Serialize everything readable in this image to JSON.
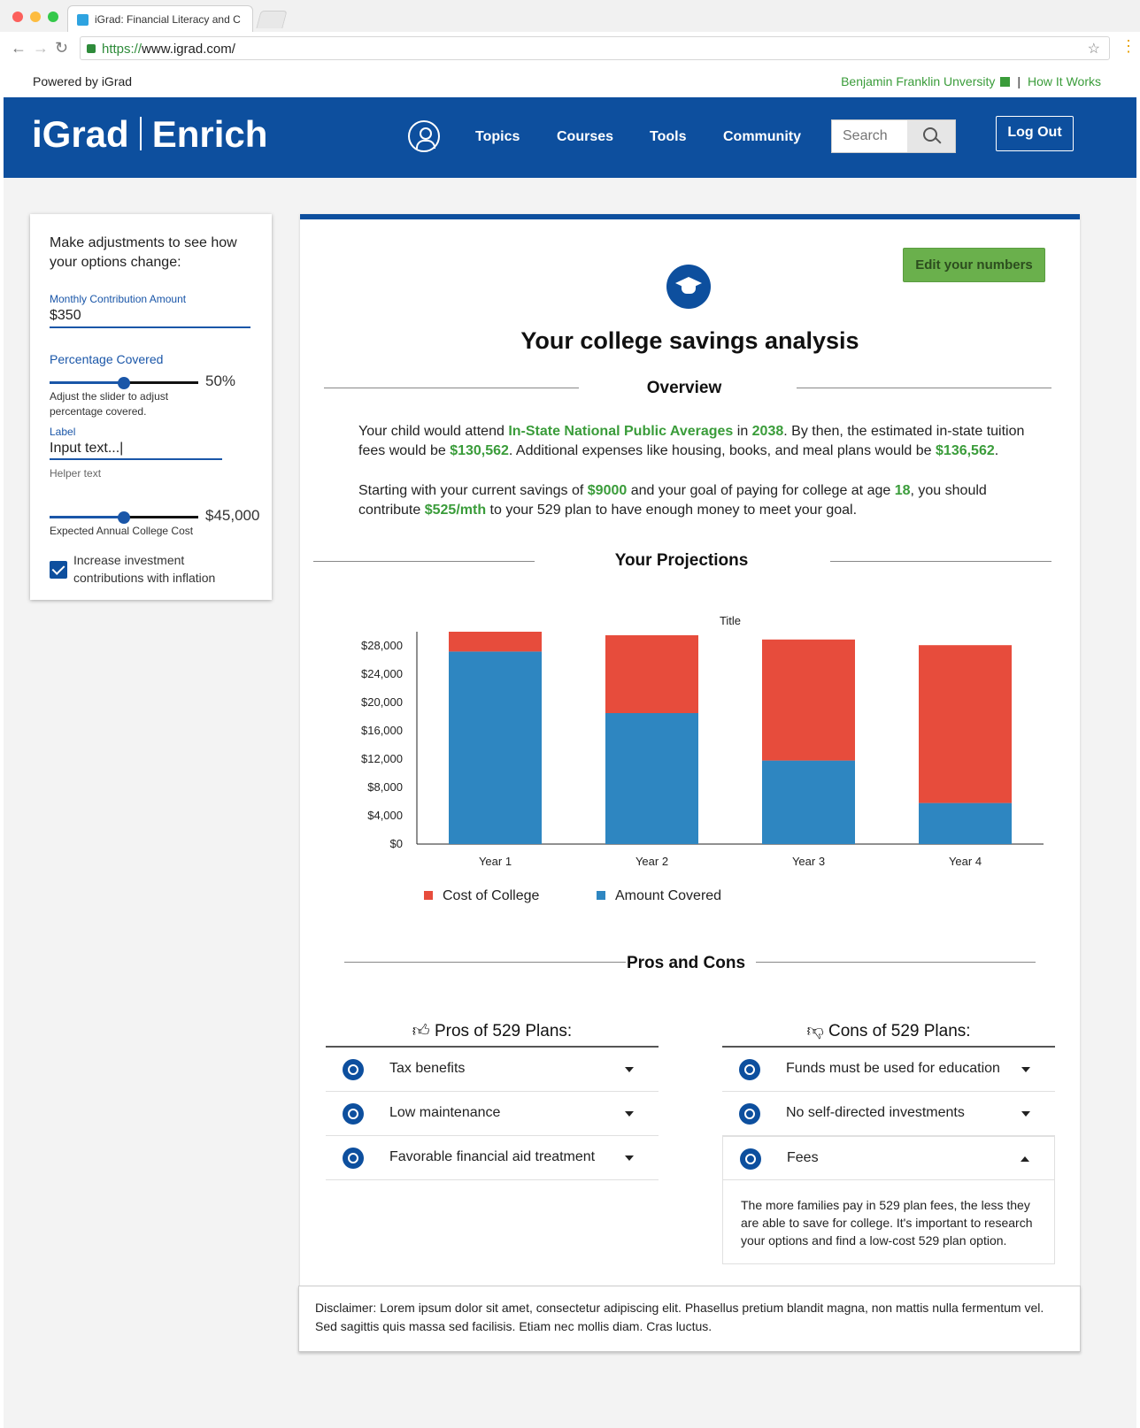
{
  "browser": {
    "tab_title": "iGrad: Financial Literacy and C",
    "url_scheme": "https://",
    "url_rest": "www.igrad.com/"
  },
  "utility": {
    "powered_by": "Powered by iGrad",
    "university_link": "Benjamin Franklin Unversity",
    "how_it_works": "How It Works"
  },
  "header": {
    "logo_left": "iGrad",
    "logo_right": "Enrich",
    "nav": [
      "Topics",
      "Courses",
      "Tools",
      "Community"
    ],
    "search_placeholder": "Search",
    "logout_label": "Log Out"
  },
  "sidebar": {
    "title": "Make adjustments to see how your options change:",
    "monthly_label": "Monthly Contribution Amount",
    "monthly_value": "$350",
    "percentage_label": "Percentage Covered",
    "percentage_value": "50%",
    "percentage_fraction": 0.5,
    "percentage_help": "Adjust the slider to adjust percentage covered.",
    "input_label": "Label",
    "input_value": "Input text...|",
    "helper_text": "Helper text",
    "cost_value": "$45,000",
    "cost_fraction": 0.5,
    "cost_label": "Expected Annual College Cost",
    "inflation_checked": true,
    "inflation_label": "Increase investment contributions with inflation"
  },
  "main": {
    "edit_button": "Edit your numbers",
    "title": "Your college savings analysis",
    "overview_head": "Overview",
    "p1": {
      "a": "Your child would attend ",
      "school": "In-State National Public Averages",
      "b": " in ",
      "year": "2038",
      "c": ". By then, the estimated in-state tuition fees would be ",
      "tuition": "$130,562",
      "d": ". Additional expenses like housing, books, and meal plans would be ",
      "expenses": "$136,562",
      "e": "."
    },
    "p2": {
      "a": "Starting with your current savings of ",
      "savings": "$9000",
      "b": " and your goal of paying for college at age ",
      "age": "18",
      "c": ", you should contribute ",
      "monthly": "$525/mth",
      "d": " to your 529 plan to have enough money to meet your goal."
    },
    "projections_head": "Your Projections",
    "pros_cons_head": "Pros and Cons"
  },
  "chart_data": {
    "type": "bar",
    "stacked": true,
    "title": "Title",
    "categories": [
      "Year 1",
      "Year 2",
      "Year 3",
      "Year 4"
    ],
    "series": [
      {
        "name": "Amount Covered",
        "color": "#2e86c1",
        "values": [
          27200,
          18500,
          11800,
          5800
        ]
      },
      {
        "name": "Cost of College",
        "color": "#e74c3c",
        "values": [
          2800,
          11000,
          17100,
          22300
        ]
      }
    ],
    "yticks": [
      "$0",
      "$4,000",
      "$8,000",
      "$12,000",
      "$16,000",
      "$20,000",
      "$24,000",
      "$28,000"
    ],
    "ylim": [
      0,
      30000
    ],
    "legend": [
      "Cost of College",
      "Amount Covered"
    ],
    "legend_position": "bottom"
  },
  "pros": {
    "head": "Pros of 529 Plans:",
    "items": [
      {
        "label": "Tax benefits",
        "icon": "money-icon"
      },
      {
        "label": "Low maintenance",
        "icon": "shield-check-icon"
      },
      {
        "label": "Favorable financial aid treatment",
        "icon": "car-icon"
      }
    ]
  },
  "cons": {
    "head": "Cons of 529 Plans:",
    "items": [
      {
        "label": "Funds must be used for education",
        "icon": "gauge-icon"
      },
      {
        "label": "No self-directed investments",
        "icon": "tag-icon"
      },
      {
        "label": "Fees",
        "icon": "document-icon"
      }
    ],
    "fees_detail": "The more families pay in 529 plan fees, the less they are able to save for college. It's important to research your options and find a low-cost 529 plan option."
  },
  "disclaimer": "Disclaimer: Lorem ipsum dolor sit amet, consectetur adipiscing elit. Phasellus pretium blandit magna, non mattis nulla fermentum vel. Sed sagittis quis massa sed facilisis. Etiam nec mollis diam. Cras luctus."
}
